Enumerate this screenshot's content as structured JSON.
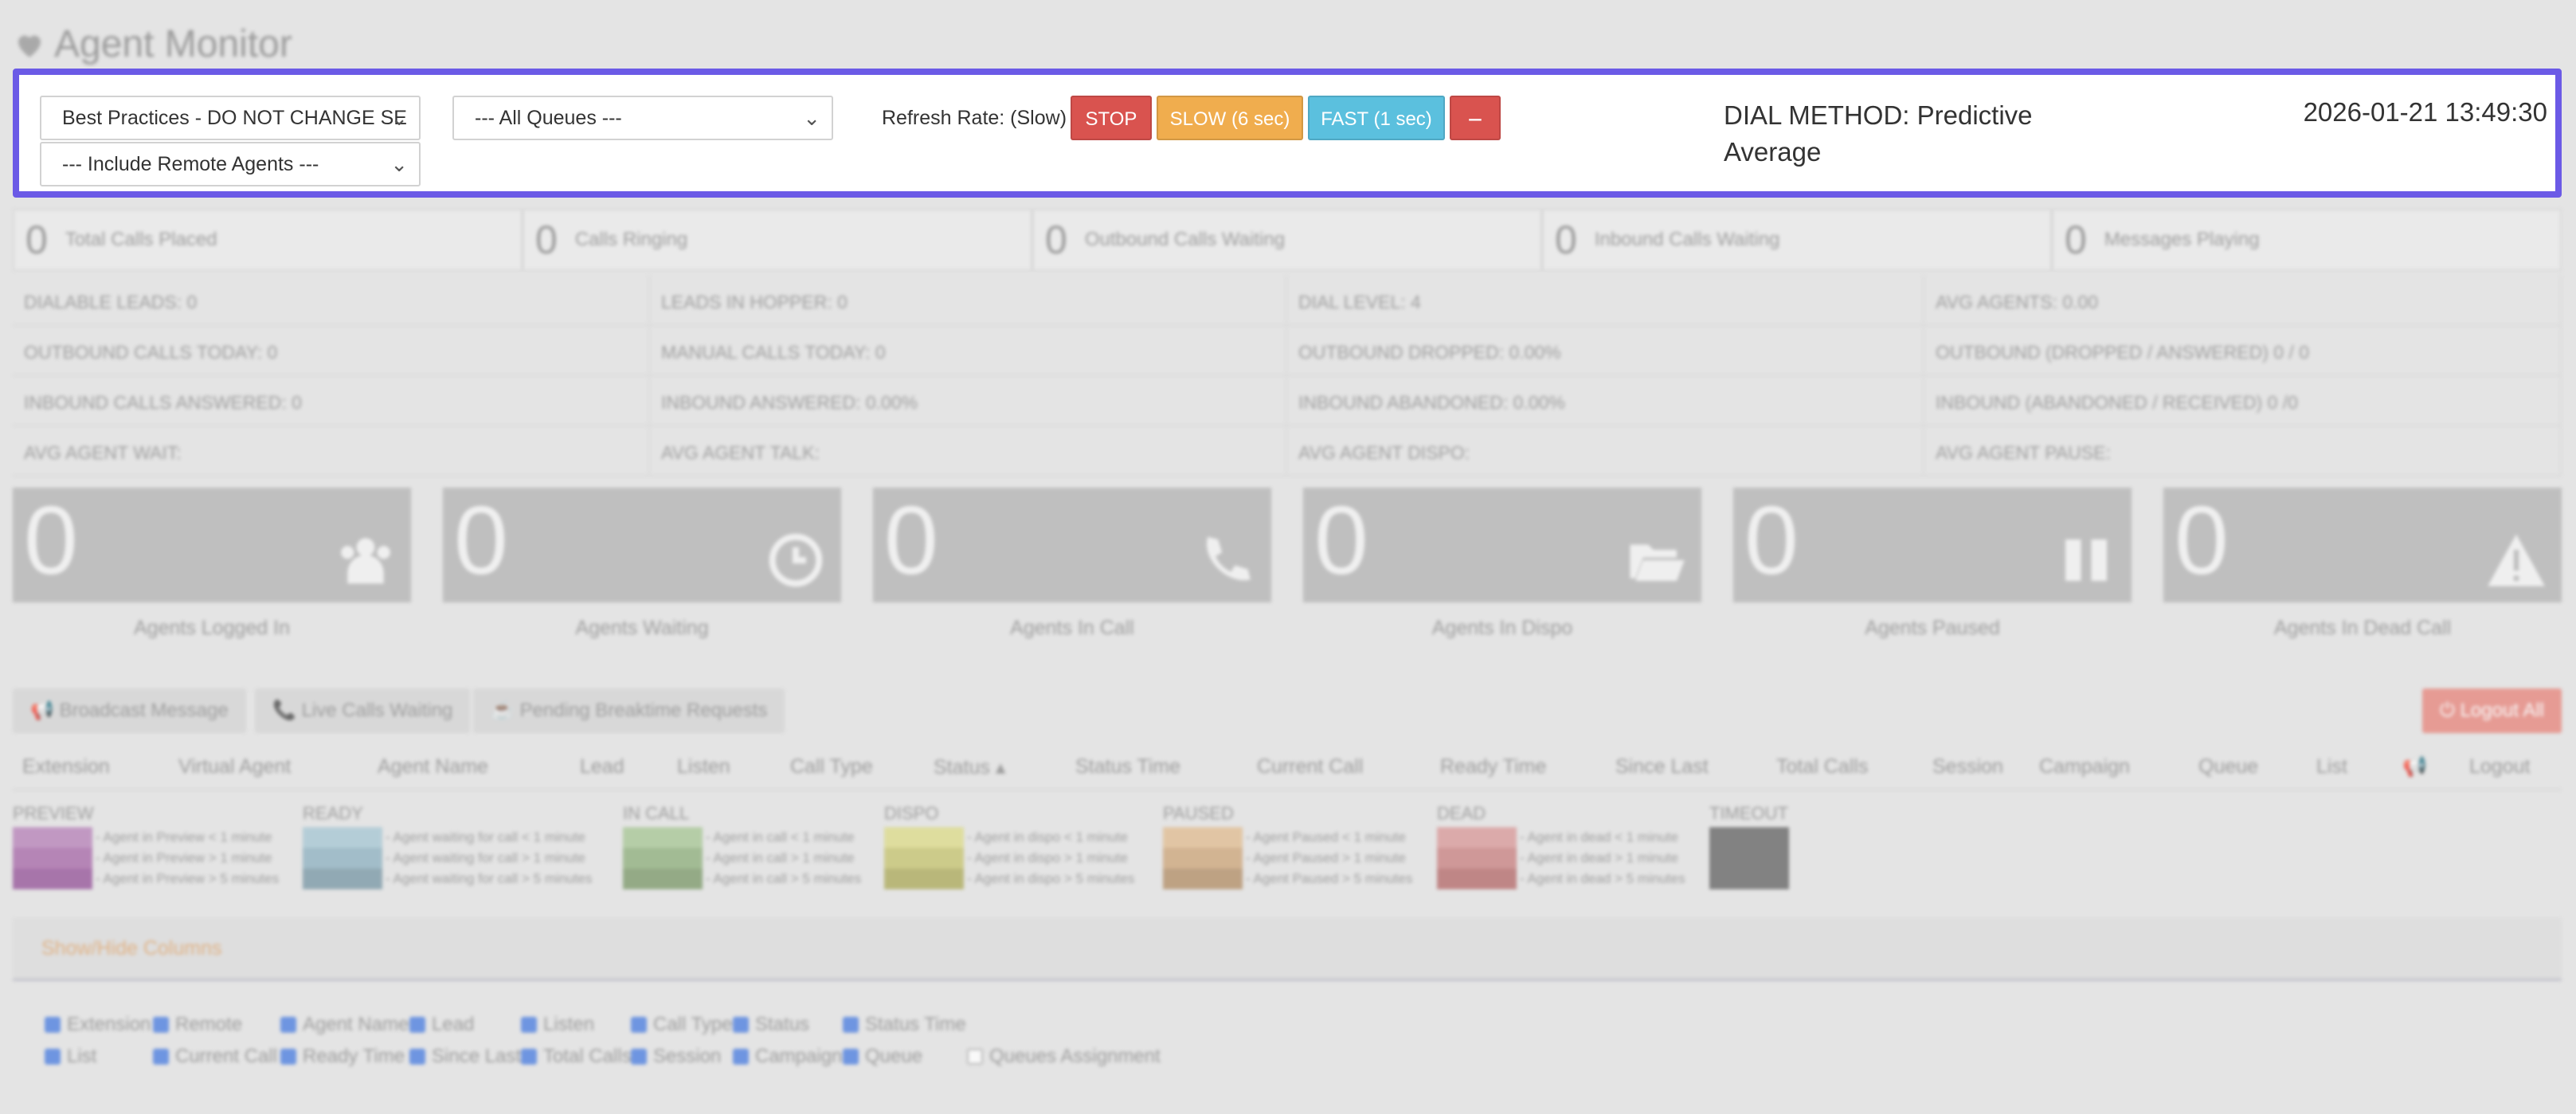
{
  "page_title": "Agent Monitor",
  "controls": {
    "campaign_select": "Best Practices - DO NOT CHANGE SE",
    "queues_select": "--- All Queues ---",
    "remote_select": "--- Include Remote Agents ---",
    "refresh_label": "Refresh Rate: (Slow)",
    "stop_label": "STOP",
    "slow_label": "SLOW (6 sec)",
    "fast_label": "FAST (1 sec)",
    "minus_label": "−",
    "dial_method": "DIAL METHOD: Predictive Average",
    "datetime": "2026-01-21 13:49:30",
    "colors": {
      "stop": "#d9534f",
      "slow": "#f0ad4e",
      "fast": "#5bc0de",
      "border": "#6b5ae6"
    }
  },
  "summary": [
    {
      "num": "0",
      "label": "Total Calls Placed"
    },
    {
      "num": "0",
      "label": "Calls Ringing"
    },
    {
      "num": "0",
      "label": "Outbound Calls Waiting"
    },
    {
      "num": "0",
      "label": "Inbound Calls Waiting"
    },
    {
      "num": "0",
      "label": "Messages Playing"
    }
  ],
  "stats": [
    [
      "DIALABLE LEADS: 0",
      "LEADS IN HOPPER: 0",
      "DIAL LEVEL: 4",
      "AVG AGENTS: 0.00"
    ],
    [
      "OUTBOUND CALLS TODAY: 0",
      "MANUAL CALLS TODAY: 0",
      "OUTBOUND DROPPED: 0.00%",
      "OUTBOUND (DROPPED / ANSWERED) 0 / 0"
    ],
    [
      "INBOUND CALLS ANSWERED: 0",
      "INBOUND ANSWERED: 0.00%",
      "INBOUND ABANDONED: 0.00%",
      "INBOUND (ABANDONED / RECEIVED) 0 /0"
    ],
    [
      "AVG AGENT WAIT:",
      "AVG AGENT TALK:",
      "AVG AGENT DISPO:",
      "AVG AGENT PAUSE:"
    ]
  ],
  "tiles": [
    {
      "num": "0",
      "label": "Agents Logged In",
      "icon": "users-icon"
    },
    {
      "num": "0",
      "label": "Agents Waiting",
      "icon": "clock-icon"
    },
    {
      "num": "0",
      "label": "Agents In Call",
      "icon": "phone-icon"
    },
    {
      "num": "0",
      "label": "Agents In Dispo",
      "icon": "folder-icon"
    },
    {
      "num": "0",
      "label": "Agents Paused",
      "icon": "pause-icon"
    },
    {
      "num": "0",
      "label": "Agents In Dead Call",
      "icon": "warning-icon"
    }
  ],
  "actions": {
    "broadcast": "Broadcast Message",
    "live_calls": "Live Calls Waiting",
    "breaktime": "Pending Breaktime Requests",
    "logout_all": "Logout All"
  },
  "columns": [
    "Extension",
    "Virtual Agent",
    "Agent Name",
    "Lead",
    "Listen",
    "Call Type",
    "Status ▴",
    "Status Time",
    "Current Call",
    "Ready Time",
    "Since Last",
    "Total Calls",
    "Session",
    "Campaign",
    "Queue",
    "List",
    "",
    "Logout"
  ],
  "legend": [
    {
      "title": "PREVIEW",
      "colors": [
        "#b783b9",
        "#a86aa9",
        "#96559a"
      ],
      "items": [
        "- Agent in Preview < 1 minute",
        "- Agent in Preview > 1 minute",
        "- Agent in Preview > 5 minutes"
      ]
    },
    {
      "title": "READY",
      "colors": [
        "#a7c7d4",
        "#8fb2c1",
        "#7a98a6"
      ],
      "items": [
        "- Agent waiting for call < 1 minute",
        "- Agent waiting for call > 1 minute",
        "- Agent waiting for call > 5 minutes"
      ]
    },
    {
      "title": "IN CALL",
      "colors": [
        "#a8c796",
        "#90b07e",
        "#7d9a6b"
      ],
      "items": [
        "- Agent in call < 1 minute",
        "- Agent in call > 1 minute",
        "- Agent in call > 5 minutes"
      ]
    },
    {
      "title": "DISPO",
      "colors": [
        "#dcdb8a",
        "#c6c470",
        "#adab5c"
      ],
      "items": [
        "- Agent in dispo < 1 minute",
        "- Agent in dispo > 1 minute",
        "- Agent in dispo > 5 minutes"
      ]
    },
    {
      "title": "PAUSED",
      "colors": [
        "#e1bd92",
        "#cda67b",
        "#b38f68"
      ],
      "items": [
        "- Agent Paused < 1 minute",
        "- Agent Paused > 1 minute",
        "- Agent Paused > 5 minutes"
      ]
    },
    {
      "title": "DEAD",
      "colors": [
        "#d99a9a",
        "#c98282",
        "#b56c6c"
      ],
      "items": [
        "- Agent in dead < 1 minute",
        "- Agent in dead > 1 minute",
        "- Agent in dead > 5 minutes"
      ]
    },
    {
      "title": "TIMEOUT",
      "colors": [
        "#666666"
      ],
      "items": []
    }
  ],
  "show_hide_label": "Show/Hide Columns",
  "column_toggles": [
    {
      "label": "Extension",
      "checked": true
    },
    {
      "label": "Remote",
      "checked": true
    },
    {
      "label": "Agent Name",
      "checked": true
    },
    {
      "label": "Lead",
      "checked": true
    },
    {
      "label": "Listen",
      "checked": true
    },
    {
      "label": "Call Type",
      "checked": true
    },
    {
      "label": "Status",
      "checked": true
    },
    {
      "label": "Status Time",
      "checked": true
    },
    {
      "label": "List",
      "checked": true
    },
    {
      "label": "Current Call",
      "checked": true
    },
    {
      "label": "Ready Time",
      "checked": true
    },
    {
      "label": "Since Last",
      "checked": true
    },
    {
      "label": "Total Calls",
      "checked": true
    },
    {
      "label": "Session",
      "checked": true
    },
    {
      "label": "Campaign",
      "checked": true
    },
    {
      "label": "Queue",
      "checked": true
    },
    {
      "label": "Queues Assignment",
      "checked": false
    }
  ]
}
